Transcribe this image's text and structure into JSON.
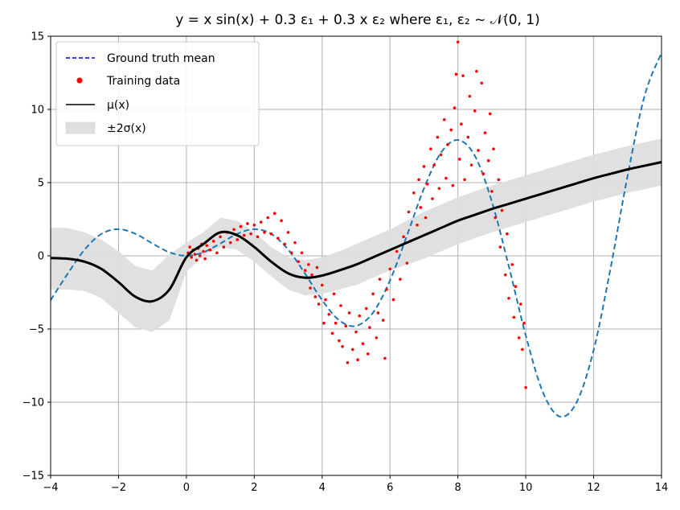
{
  "chart_data": {
    "type": "line",
    "title": "y = x sin(x) + 0.3 ε₁ + 0.3 x ε₂ where ε₁, ε₂ ~ 𝒩(0, 1)",
    "xlabel": "",
    "ylabel": "",
    "xlim": [
      -4,
      14
    ],
    "ylim": [
      -15,
      15
    ],
    "xticks": [
      -4,
      -2,
      0,
      2,
      4,
      6,
      8,
      10,
      12,
      14
    ],
    "yticks": [
      -15,
      -10,
      -5,
      0,
      5,
      10,
      15
    ],
    "xtick_labels": [
      "−4",
      "−2",
      "0",
      "2",
      "4",
      "6",
      "8",
      "10",
      "12",
      "14"
    ],
    "ytick_labels": [
      "−15",
      "−10",
      "−5",
      "0",
      "5",
      "10",
      "15"
    ],
    "grid": true,
    "legend_position": "top-left",
    "legend": [
      {
        "label": "Ground truth mean",
        "style": "dashed-line",
        "color": "#0000ff"
      },
      {
        "label": "Training data",
        "style": "point",
        "color": "#ff0000"
      },
      {
        "label": "μ(x)",
        "style": "solid-line",
        "color": "#000000"
      },
      {
        "label": "±2σ(x)",
        "style": "band",
        "color": "#e0e0e0"
      }
    ],
    "series": [
      {
        "name": "Ground truth mean",
        "kind": "dashed-line",
        "color": "#1f77b4",
        "x": [
          -4.0,
          -3.5,
          -3.0,
          -2.5,
          -2.0,
          -1.5,
          -1.0,
          -0.5,
          0.0,
          0.5,
          1.0,
          1.5,
          2.0,
          2.5,
          3.0,
          3.5,
          4.0,
          4.5,
          5.0,
          5.5,
          6.0,
          6.5,
          7.0,
          7.5,
          8.0,
          8.5,
          9.0,
          9.5,
          10.0,
          10.5,
          11.0,
          11.5,
          12.0,
          12.5,
          13.0,
          13.5,
          14.0
        ],
        "y": [
          -3.03,
          -1.23,
          0.42,
          1.5,
          1.82,
          1.5,
          0.84,
          0.24,
          0.0,
          0.24,
          0.84,
          1.5,
          1.82,
          1.5,
          0.42,
          -1.23,
          -3.03,
          -4.4,
          -4.79,
          -3.88,
          -1.68,
          1.39,
          4.6,
          7.04,
          7.91,
          6.83,
          3.71,
          -0.71,
          -5.44,
          -9.29,
          -10.98,
          -10.0,
          -6.44,
          -0.83,
          5.46,
          10.92,
          13.87
        ]
      },
      {
        "name": "μ(x)",
        "kind": "solid-line",
        "color": "#000000",
        "x": [
          -4.0,
          -3.5,
          -3.0,
          -2.5,
          -2.0,
          -1.5,
          -1.0,
          -0.5,
          0.0,
          0.5,
          1.0,
          1.5,
          2.0,
          2.5,
          3.0,
          3.5,
          4.0,
          4.5,
          5.0,
          5.5,
          6.0,
          6.5,
          7.0,
          7.5,
          8.0,
          8.5,
          9.0,
          9.5,
          10.0,
          10.5,
          11.0,
          11.5,
          12.0,
          12.5,
          13.0,
          13.5,
          14.0
        ],
        "y": [
          -0.15,
          -0.2,
          -0.4,
          -0.9,
          -1.8,
          -2.8,
          -3.1,
          -2.3,
          -0.1,
          0.8,
          1.6,
          1.4,
          0.6,
          -0.4,
          -1.2,
          -1.5,
          -1.35,
          -1.0,
          -0.6,
          -0.1,
          0.4,
          0.9,
          1.4,
          1.9,
          2.4,
          2.8,
          3.2,
          3.55,
          3.9,
          4.25,
          4.6,
          4.95,
          5.3,
          5.6,
          5.9,
          6.15,
          6.4
        ]
      },
      {
        "name": "±2σ(x)",
        "kind": "band",
        "color": "#dedede",
        "x": [
          -4.0,
          -3.5,
          -3.0,
          -2.5,
          -2.0,
          -1.5,
          -1.0,
          -0.5,
          0.0,
          0.5,
          1.0,
          1.5,
          2.0,
          2.5,
          3.0,
          3.5,
          4.0,
          4.5,
          5.0,
          5.5,
          6.0,
          6.5,
          7.0,
          7.5,
          8.0,
          8.5,
          9.0,
          9.5,
          10.0,
          10.5,
          11.0,
          11.5,
          12.0,
          12.5,
          13.0,
          13.5,
          14.0
        ],
        "lower": [
          -2.3,
          -2.3,
          -2.4,
          -2.9,
          -3.9,
          -4.9,
          -5.2,
          -4.4,
          -1.1,
          0.0,
          0.6,
          0.4,
          -0.4,
          -1.4,
          -2.3,
          -2.7,
          -2.6,
          -2.3,
          -2.0,
          -1.5,
          -1.0,
          -0.6,
          -0.2,
          0.3,
          0.8,
          1.2,
          1.6,
          1.95,
          2.3,
          2.65,
          3.0,
          3.35,
          3.7,
          4.0,
          4.3,
          4.55,
          4.8
        ],
        "upper": [
          1.9,
          1.9,
          1.6,
          1.1,
          0.3,
          -0.7,
          -1.0,
          0.1,
          0.9,
          1.6,
          2.6,
          2.4,
          1.6,
          0.6,
          -0.1,
          -0.3,
          -0.1,
          0.3,
          0.8,
          1.3,
          1.8,
          2.4,
          3.0,
          3.5,
          4.0,
          4.4,
          4.8,
          5.15,
          5.5,
          5.85,
          6.2,
          6.55,
          6.9,
          7.2,
          7.5,
          7.75,
          8.0
        ]
      },
      {
        "name": "Training data",
        "kind": "scatter",
        "color": "#ff0000",
        "points": [
          [
            0.05,
            0.2
          ],
          [
            0.1,
            0.6
          ],
          [
            0.15,
            -0.1
          ],
          [
            0.2,
            0.4
          ],
          [
            0.25,
            0.1
          ],
          [
            0.3,
            -0.3
          ],
          [
            0.35,
            0.5
          ],
          [
            0.4,
            0.0
          ],
          [
            0.45,
            0.8
          ],
          [
            0.5,
            0.3
          ],
          [
            0.55,
            -0.2
          ],
          [
            0.6,
            0.7
          ],
          [
            0.7,
            0.4
          ],
          [
            0.8,
            1.0
          ],
          [
            0.9,
            0.2
          ],
          [
            1.0,
            1.3
          ],
          [
            1.1,
            0.6
          ],
          [
            1.2,
            1.6
          ],
          [
            1.3,
            0.9
          ],
          [
            1.4,
            1.8
          ],
          [
            1.5,
            1.1
          ],
          [
            1.6,
            2.0
          ],
          [
            1.7,
            1.4
          ],
          [
            1.8,
            2.2
          ],
          [
            1.9,
            1.5
          ],
          [
            2.0,
            2.1
          ],
          [
            2.1,
            1.3
          ],
          [
            2.2,
            2.3
          ],
          [
            2.3,
            1.6
          ],
          [
            2.4,
            2.6
          ],
          [
            2.5,
            1.5
          ],
          [
            2.6,
            2.9
          ],
          [
            2.7,
            1.2
          ],
          [
            2.8,
            2.4
          ],
          [
            2.9,
            0.8
          ],
          [
            3.0,
            1.6
          ],
          [
            3.1,
            0.2
          ],
          [
            3.2,
            0.9
          ],
          [
            3.3,
            -0.4
          ],
          [
            3.4,
            0.2
          ],
          [
            3.5,
            -1.0
          ],
          [
            3.6,
            -0.6
          ],
          [
            3.65,
            -2.2
          ],
          [
            3.7,
            -1.3
          ],
          [
            3.8,
            -2.8
          ],
          [
            3.85,
            -0.8
          ],
          [
            3.9,
            -3.3
          ],
          [
            4.0,
            -2.0
          ],
          [
            4.05,
            -4.6
          ],
          [
            4.1,
            -3.0
          ],
          [
            4.2,
            -4.0
          ],
          [
            4.3,
            -5.3
          ],
          [
            4.35,
            -2.6
          ],
          [
            4.4,
            -4.6
          ],
          [
            4.5,
            -5.8
          ],
          [
            4.55,
            -3.4
          ],
          [
            4.6,
            -6.2
          ],
          [
            4.7,
            -4.8
          ],
          [
            4.75,
            -7.3
          ],
          [
            4.8,
            -3.9
          ],
          [
            4.9,
            -6.4
          ],
          [
            5.0,
            -5.2
          ],
          [
            5.05,
            -7.1
          ],
          [
            5.1,
            -4.1
          ],
          [
            5.2,
            -6.0
          ],
          [
            5.3,
            -3.6
          ],
          [
            5.35,
            -6.7
          ],
          [
            5.4,
            -4.9
          ],
          [
            5.5,
            -2.6
          ],
          [
            5.6,
            -5.6
          ],
          [
            5.65,
            -3.9
          ],
          [
            5.7,
            -1.6
          ],
          [
            5.8,
            -4.4
          ],
          [
            5.85,
            -7.0
          ],
          [
            5.9,
            -2.3
          ],
          [
            6.0,
            -0.9
          ],
          [
            6.1,
            -3.0
          ],
          [
            6.2,
            0.3
          ],
          [
            6.3,
            -1.6
          ],
          [
            6.4,
            1.3
          ],
          [
            6.5,
            -0.5
          ],
          [
            6.55,
            3.0
          ],
          [
            6.6,
            1.0
          ],
          [
            6.7,
            4.3
          ],
          [
            6.8,
            2.1
          ],
          [
            6.85,
            5.2
          ],
          [
            6.9,
            3.3
          ],
          [
            7.0,
            6.1
          ],
          [
            7.05,
            2.6
          ],
          [
            7.1,
            4.9
          ],
          [
            7.2,
            7.3
          ],
          [
            7.25,
            3.9
          ],
          [
            7.3,
            6.2
          ],
          [
            7.4,
            8.1
          ],
          [
            7.45,
            4.6
          ],
          [
            7.5,
            6.9
          ],
          [
            7.6,
            9.3
          ],
          [
            7.65,
            5.3
          ],
          [
            7.7,
            7.6
          ],
          [
            7.8,
            8.6
          ],
          [
            7.85,
            4.8
          ],
          [
            7.9,
            10.1
          ],
          [
            7.95,
            12.4
          ],
          [
            8.0,
            14.6
          ],
          [
            8.05,
            6.6
          ],
          [
            8.1,
            9.0
          ],
          [
            8.15,
            12.3
          ],
          [
            8.2,
            5.2
          ],
          [
            8.3,
            8.1
          ],
          [
            8.35,
            10.9
          ],
          [
            8.4,
            6.2
          ],
          [
            8.5,
            9.9
          ],
          [
            8.55,
            12.6
          ],
          [
            8.6,
            7.2
          ],
          [
            8.7,
            11.8
          ],
          [
            8.75,
            5.6
          ],
          [
            8.8,
            8.4
          ],
          [
            8.9,
            6.5
          ],
          [
            8.95,
            9.7
          ],
          [
            9.0,
            4.4
          ],
          [
            9.05,
            7.3
          ],
          [
            9.1,
            2.6
          ],
          [
            9.2,
            5.2
          ],
          [
            9.25,
            0.6
          ],
          [
            9.3,
            3.1
          ],
          [
            9.4,
            -1.3
          ],
          [
            9.45,
            1.5
          ],
          [
            9.5,
            -2.9
          ],
          [
            9.6,
            -0.6
          ],
          [
            9.65,
            -4.2
          ],
          [
            9.7,
            -2.1
          ],
          [
            9.8,
            -5.6
          ],
          [
            9.85,
            -3.3
          ],
          [
            9.9,
            -6.4
          ],
          [
            9.95,
            -4.6
          ],
          [
            10.0,
            -9.0
          ]
        ]
      }
    ]
  }
}
